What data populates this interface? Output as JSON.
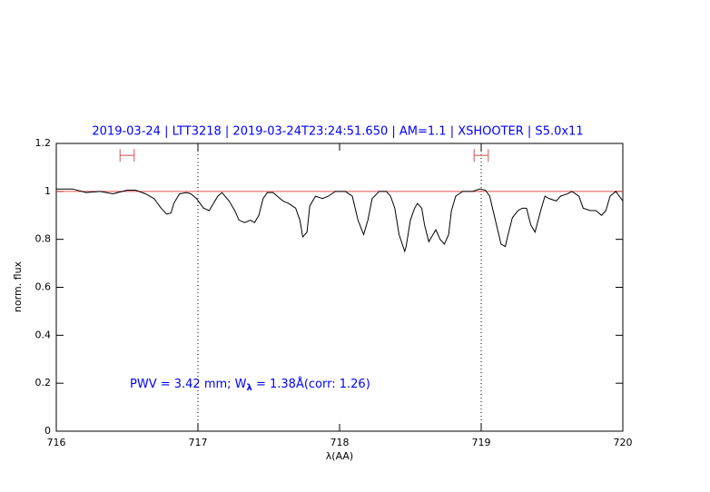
{
  "chart_data": {
    "type": "line",
    "title": "2019-03-24 | LTT3218 | 2019-03-24T23:24:51.650 | AM=1.1 | XSHOOTER | S5.0x11",
    "x_label": "λ(AA)",
    "y_label": "norm. flux",
    "annotation": [
      "PWV = 3.42 mm; W",
      "λ",
      " = 1.38Å(corr: 1.26)"
    ],
    "xlim": [
      716,
      720
    ],
    "ylim": [
      0,
      1.2
    ],
    "xticks": [
      716,
      717,
      718,
      719,
      720
    ],
    "yticks": [
      0,
      0.2,
      0.4,
      0.6,
      0.8,
      1,
      1.2
    ],
    "hline": 1,
    "hline_color": "#e05050",
    "vlines": [
      717,
      719
    ],
    "ranges": [
      [
        716.45,
        716.55
      ],
      [
        718.95,
        719.05
      ]
    ],
    "range_y": 1.15,
    "range_color": "#e05050",
    "series": [
      {
        "color": "#000000",
        "x": [
          716.0,
          716.115,
          716.21,
          716.31,
          716.4,
          716.5,
          716.56,
          716.63,
          716.69,
          716.74,
          716.78,
          716.81,
          716.83,
          716.87,
          716.92,
          716.95,
          716.99,
          717.04,
          717.08,
          717.14,
          717.17,
          717.22,
          717.26,
          717.29,
          717.33,
          717.37,
          717.4,
          717.43,
          717.46,
          717.49,
          717.53,
          717.56,
          717.6,
          717.64,
          717.69,
          717.72,
          717.74,
          717.77,
          717.79,
          717.83,
          717.88,
          717.92,
          717.97,
          718.04,
          718.09,
          718.13,
          718.17,
          718.2,
          718.23,
          718.28,
          718.33,
          718.36,
          718.39,
          718.42,
          718.46,
          718.47,
          718.5,
          718.53,
          718.55,
          718.58,
          718.6,
          718.63,
          718.65,
          718.68,
          718.71,
          718.74,
          718.77,
          718.79,
          718.82,
          718.87,
          718.94,
          718.99,
          719.03,
          719.06,
          719.1,
          719.14,
          719.17,
          719.19,
          719.22,
          719.26,
          719.29,
          719.32,
          719.35,
          719.38,
          719.42,
          719.45,
          719.48,
          719.53,
          719.56,
          719.61,
          719.64,
          719.69,
          719.72,
          719.77,
          719.81,
          719.85,
          719.88,
          719.91,
          719.95,
          720.0
        ],
        "values": [
          1.01,
          1.01,
          0.995,
          1.0,
          0.99,
          1.005,
          1.005,
          0.99,
          0.97,
          0.93,
          0.905,
          0.91,
          0.95,
          0.99,
          0.995,
          0.99,
          0.97,
          0.93,
          0.92,
          0.98,
          0.995,
          0.96,
          0.92,
          0.88,
          0.87,
          0.88,
          0.87,
          0.9,
          0.97,
          0.995,
          0.995,
          0.98,
          0.96,
          0.95,
          0.93,
          0.88,
          0.81,
          0.83,
          0.94,
          0.98,
          0.97,
          0.98,
          1.0,
          1.0,
          0.98,
          0.88,
          0.82,
          0.88,
          0.97,
          1.0,
          1.0,
          0.98,
          0.93,
          0.82,
          0.75,
          0.77,
          0.88,
          0.93,
          0.95,
          0.93,
          0.86,
          0.79,
          0.81,
          0.84,
          0.8,
          0.78,
          0.82,
          0.92,
          0.98,
          1.0,
          1.0,
          1.01,
          1.005,
          0.98,
          0.88,
          0.78,
          0.77,
          0.82,
          0.89,
          0.92,
          0.93,
          0.93,
          0.86,
          0.83,
          0.92,
          0.98,
          0.97,
          0.96,
          0.98,
          0.99,
          1.0,
          0.98,
          0.93,
          0.92,
          0.92,
          0.9,
          0.92,
          0.98,
          1.0,
          0.96
        ]
      }
    ]
  }
}
